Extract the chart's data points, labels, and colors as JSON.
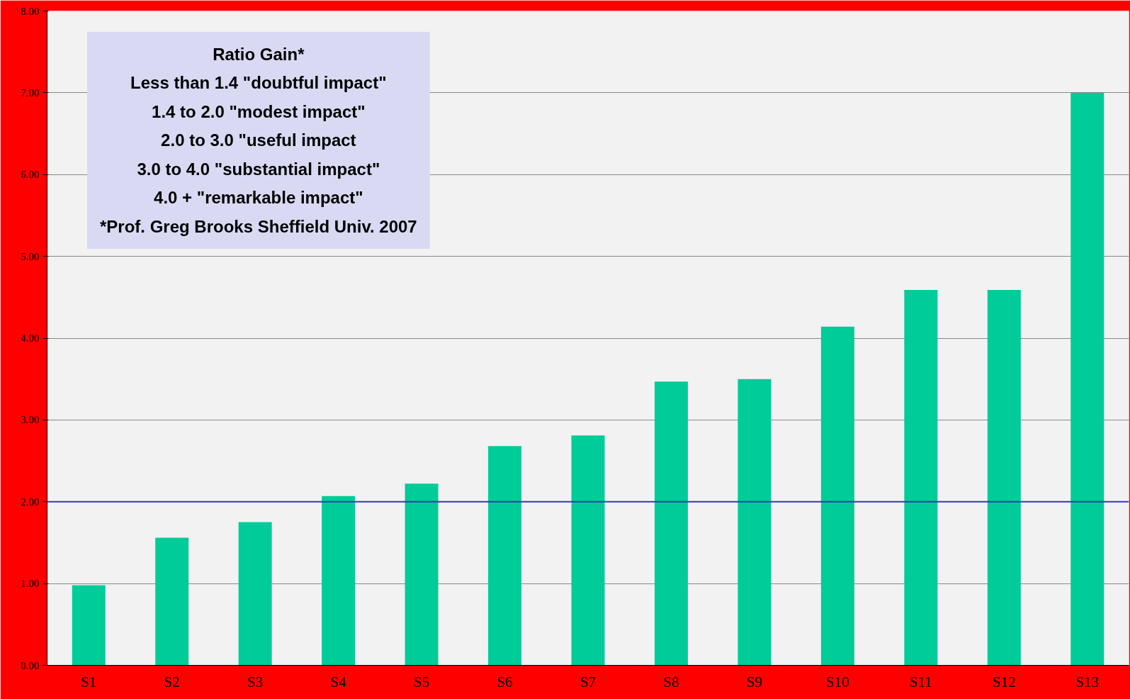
{
  "chart_data": {
    "type": "bar",
    "categories": [
      "S1",
      "S2",
      "S3",
      "S4",
      "S5",
      "S6",
      "S7",
      "S8",
      "S9",
      "S10",
      "S11",
      "S12",
      "S13"
    ],
    "values": [
      0.98,
      1.56,
      1.75,
      2.07,
      2.22,
      2.68,
      2.81,
      3.47,
      3.5,
      4.14,
      4.59,
      4.59,
      7.0
    ],
    "color": "#00cc99",
    "ylim": [
      0,
      8
    ],
    "yticks": [
      {
        "value": 0,
        "label": "0.00"
      },
      {
        "value": 1,
        "label": "1.00"
      },
      {
        "value": 2,
        "label": "2.00"
      },
      {
        "value": 3,
        "label": "3.00"
      },
      {
        "value": 4,
        "label": "4.00"
      },
      {
        "value": 5,
        "label": "5.00"
      },
      {
        "value": 6,
        "label": "6.00"
      },
      {
        "value": 7,
        "label": "7.00"
      },
      {
        "value": 8,
        "label": "8.00"
      }
    ],
    "grid": "y",
    "ref_lines": [
      {
        "axis": "y",
        "value": 2,
        "color": "#3333cc"
      }
    ],
    "annotations": [
      "Ratio Gain*",
      "Less than 1.4 \"doubtful impact\"",
      "1.4 to 2.0 \"modest impact\"",
      "2.0 to 3.0 \"useful impact",
      "3.0 to 4.0 \"substantial impact\"",
      "4.0 + \"remarkable impact\"",
      "*Prof. Greg Brooks Sheffield Univ. 2007"
    ]
  }
}
